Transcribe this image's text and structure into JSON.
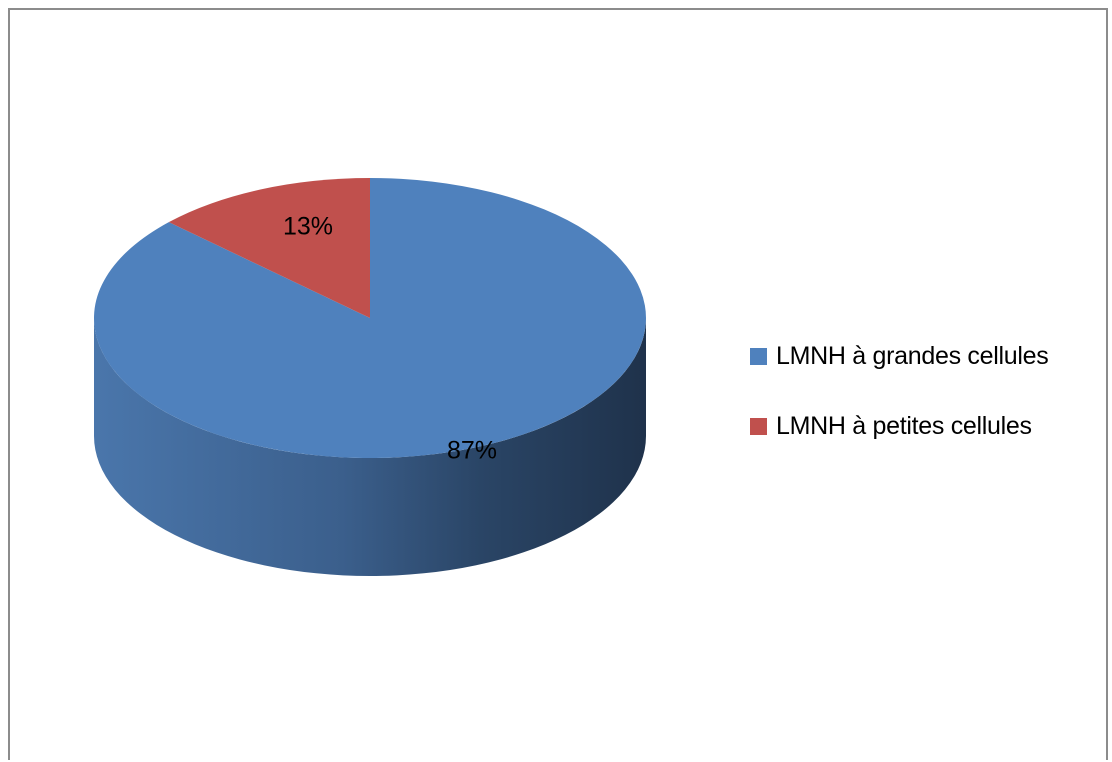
{
  "chart_data": {
    "type": "pie",
    "style": "3d",
    "title": "",
    "legend_position": "right",
    "slices": [
      {
        "label": "LMNH à grandes cellules",
        "value": 87,
        "display": "87%",
        "color": "#4f81bd"
      },
      {
        "label": "LMNH à petites cellules",
        "value": 13,
        "display": "13%",
        "color": "#c0504d"
      }
    ]
  }
}
